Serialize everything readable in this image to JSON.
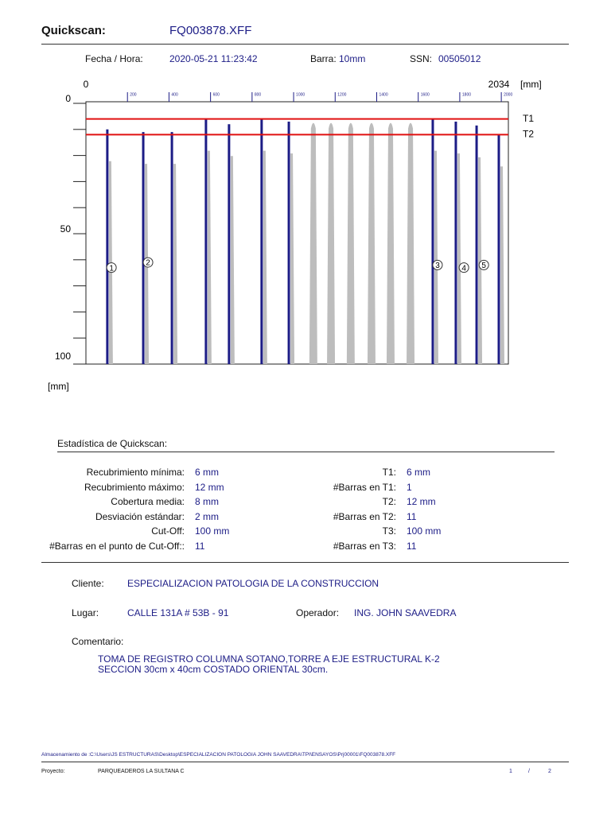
{
  "header": {
    "title": "Quickscan:",
    "file": "FQ003878.XFF"
  },
  "info": {
    "fecha_label": "Fecha / Hora:",
    "fecha": "2020-05-21 11:23:42",
    "barra_label": "Barra:",
    "barra": "10mm",
    "ssn_label": "SSN:",
    "ssn": "00505012"
  },
  "chart_data": {
    "type": "bar",
    "xlim": [
      0,
      2034
    ],
    "xticks": [
      200,
      400,
      600,
      800,
      1000,
      1200,
      1400,
      1600,
      1800,
      2000
    ],
    "x_unit": "[mm]",
    "ylim": [
      0,
      100
    ],
    "yticks": [
      0,
      50,
      100
    ],
    "yticks_minor": [
      10,
      20,
      30,
      40,
      60,
      70,
      80,
      90
    ],
    "y_unit": "[mm]",
    "thresholds": [
      {
        "label": "T1",
        "value": 6,
        "color": "#e01010"
      },
      {
        "label": "T2",
        "value": 12,
        "color": "#e01010"
      }
    ],
    "series": [
      {
        "color": "#1c1c86",
        "x": [
          103,
          276,
          414,
          578,
          689,
          846,
          977,
          1670,
          1781,
          1881,
          1988
        ],
        "values": [
          10,
          11,
          11,
          6,
          8,
          6,
          7,
          6,
          7,
          8.5,
          12
        ]
      },
      {
        "color": "#bdbdbd",
        "x": [
          1095,
          1180,
          1275,
          1375,
          1467,
          1563
        ],
        "values": [
          6,
          6,
          6,
          6,
          6,
          6
        ]
      }
    ],
    "markers": [
      {
        "label": "1",
        "x": 123,
        "y": 63
      },
      {
        "label": "2",
        "x": 299,
        "y": 61
      },
      {
        "label": "3",
        "x": 1693,
        "y": 62
      },
      {
        "label": "4",
        "x": 1820,
        "y": 63
      },
      {
        "label": "5",
        "x": 1916,
        "y": 62
      }
    ]
  },
  "stats": {
    "title": "Estadística de Quickscan:",
    "left": [
      [
        "Recubrimiento mínima:",
        "6 mm"
      ],
      [
        "Recubrimiento máximo:",
        "12 mm"
      ],
      [
        "Cobertura media:",
        "8 mm"
      ],
      [
        "Desviación estándar:",
        "2 mm"
      ],
      [
        "Cut-Off:",
        "100 mm"
      ],
      [
        "#Barras en el punto de Cut-Off::",
        "11"
      ]
    ],
    "right": [
      [
        "T1:",
        "6 mm"
      ],
      [
        "#Barras en T1:",
        "1"
      ],
      [
        "T2:",
        "12 mm"
      ],
      [
        "#Barras en T2:",
        "11"
      ],
      [
        "T3:",
        "100 mm"
      ],
      [
        "#Barras en T3:",
        "11"
      ]
    ]
  },
  "client": {
    "cliente_label": "Cliente:",
    "cliente": "ESPECIALIZACION PATOLOGIA DE LA CONSTRUCCION",
    "lugar_label": "Lugar:",
    "lugar": "CALLE 131A  # 53B - 91",
    "operador_label": "Operador:",
    "operador": "ING. JOHN SAAVEDRA",
    "comentario_label": "Comentario:",
    "comentario": [
      "TOMA DE REGISTRO COLUMNA SOTANO,TORRE A EJE ESTRUCTURAL K-2",
      "SECCION 30cm x 40cm COSTADO ORIENTAL 30cm."
    ]
  },
  "footer": {
    "path": "Almacenamiento de :C:\\Users\\JS ESTRUCTURAS\\Desktop\\ESPECIALIZACION PATOLOGIA JOHN SAAVEDRA\\TPI\\ENSAYOS\\Prj00001\\FQ003878.XFF",
    "proyecto_label": "Proyecto:",
    "proyecto": "PARQUEADEROS  LA SULTANA C",
    "page": "1",
    "sep": "/",
    "pages": "2"
  }
}
